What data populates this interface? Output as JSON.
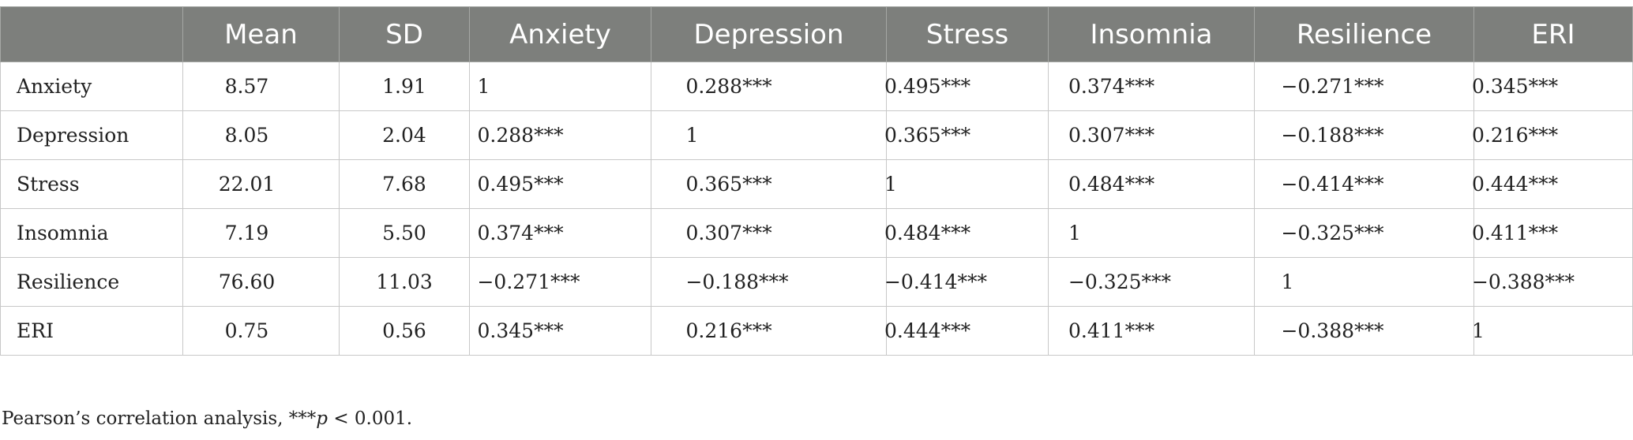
{
  "table": {
    "columns": [
      "",
      "Mean",
      "SD",
      "Anxiety",
      "Depression",
      "Stress",
      "Insomnia",
      "Resilience",
      "ERI"
    ],
    "rows": [
      [
        "Anxiety",
        "8.57",
        "1.91",
        "1",
        "0.288***",
        "0.495***",
        "0.374***",
        "−0.271***",
        "0.345***"
      ],
      [
        "Depression",
        "8.05",
        "2.04",
        "0.288***",
        "1",
        "0.365***",
        "0.307***",
        "−0.188***",
        "0.216***"
      ],
      [
        "Stress",
        "22.01",
        "7.68",
        "0.495***",
        "0.365***",
        "1",
        "0.484***",
        "−0.414***",
        "0.444***"
      ],
      [
        "Insomnia",
        "7.19",
        "5.50",
        "0.374***",
        "0.307***",
        "0.484***",
        "1",
        "−0.325***",
        "0.411***"
      ],
      [
        "Resilience",
        "76.60",
        "11.03",
        "−0.271***",
        "−0.188***",
        "−0.414***",
        "−0.325***",
        "1",
        "−0.388***"
      ],
      [
        "ERI",
        "0.75",
        "0.56",
        "0.345***",
        "0.216***",
        "0.444***",
        "0.411***",
        "−0.388***",
        "1"
      ]
    ]
  },
  "footnote": {
    "prefix": "Pearson’s correlation analysis, ***",
    "italic": "p",
    "suffix": " < 0.001."
  }
}
